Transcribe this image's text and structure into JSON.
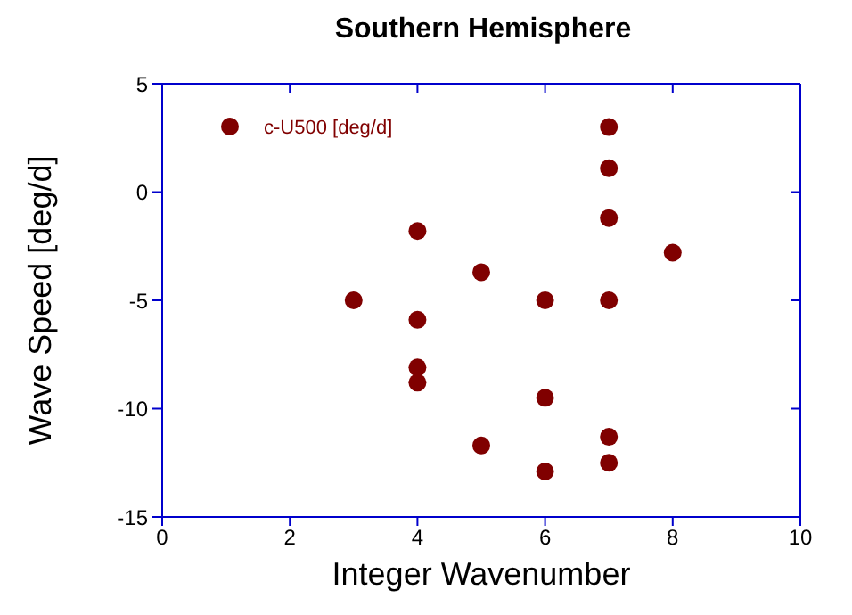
{
  "chart_data": {
    "type": "scatter",
    "title": "Southern Hemisphere",
    "xlabel": "Integer Wavenumber",
    "ylabel": "Wave Speed [deg/d]",
    "xlim": [
      0,
      10
    ],
    "xticks": [
      0,
      2,
      4,
      6,
      8,
      10
    ],
    "ylim": [
      -15,
      5
    ],
    "yticks": [
      -15,
      -10,
      -5,
      0,
      5
    ],
    "grid": false,
    "legend": "top left",
    "marker": "circle",
    "series": [
      {
        "name": "c-U500 [deg/d]",
        "color": "#800000",
        "x": [
          3,
          4,
          4,
          4,
          4,
          5,
          5,
          6,
          6,
          6,
          7,
          7,
          7,
          7,
          7,
          7,
          8
        ],
        "values": [
          -5,
          -1.8,
          -5.9,
          -8.1,
          -8.8,
          -3.7,
          -11.7,
          -5,
          -9.5,
          -12.9,
          3,
          1.1,
          -1.2,
          -5,
          -11.3,
          -12.5,
          -2.8
        ]
      }
    ]
  }
}
